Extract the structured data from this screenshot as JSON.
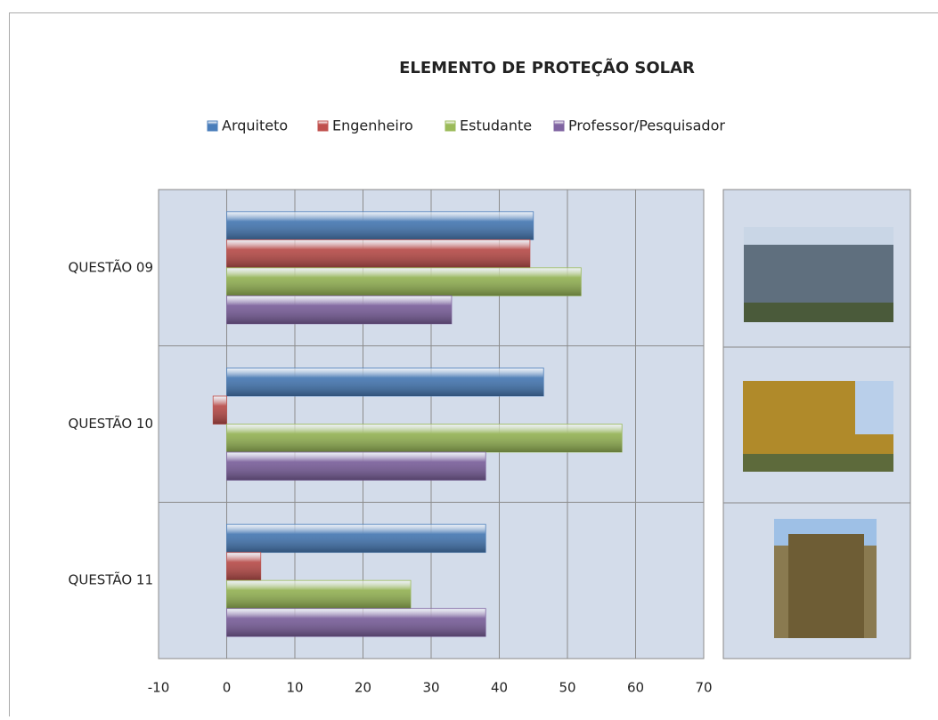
{
  "chart_data": {
    "type": "bar",
    "orientation": "horizontal",
    "title": "ELEMENTO DE PROTEÇÃO SOLAR",
    "categories": [
      "QUESTÃO 09",
      "QUESTÃO 10",
      "QUESTÃO 11"
    ],
    "series": [
      {
        "name": "Arquiteto",
        "color": "#4a7ebb",
        "values": [
          45,
          46.5,
          38
        ]
      },
      {
        "name": "Engenheiro",
        "color": "#c0504d",
        "values": [
          44.5,
          -2,
          5
        ]
      },
      {
        "name": "Estudante",
        "color": "#9bbb59",
        "values": [
          52,
          58,
          27
        ]
      },
      {
        "name": "Professor/Pesquisador",
        "color": "#8064a2",
        "values": [
          33,
          38,
          38
        ]
      }
    ],
    "xlim": [
      -10,
      70
    ],
    "xticks": [
      -10,
      0,
      10,
      20,
      30,
      40,
      50,
      60,
      70
    ],
    "grid": true
  }
}
